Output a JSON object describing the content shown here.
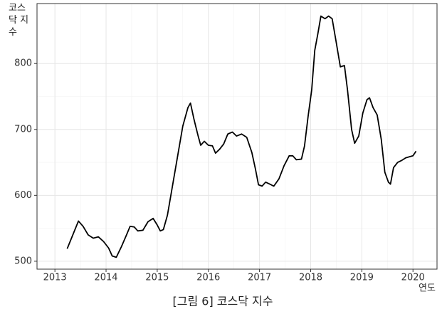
{
  "chart_data": {
    "type": "line",
    "caption": "[그림 6] 코스닥 지수",
    "ylabel": "코스닥 지수",
    "xlabel": "연도",
    "color": "#000000",
    "grid": true,
    "x": [
      2013.24,
      2013.35,
      2013.46,
      2013.55,
      2013.65,
      2013.75,
      2013.85,
      2013.95,
      2014.05,
      2014.12,
      2014.2,
      2014.3,
      2014.4,
      2014.47,
      2014.55,
      2014.62,
      2014.72,
      2014.82,
      2014.92,
      2015.0,
      2015.06,
      2015.12,
      2015.2,
      2015.3,
      2015.4,
      2015.5,
      2015.6,
      2015.65,
      2015.72,
      2015.8,
      2015.85,
      2015.92,
      2016.0,
      2016.08,
      2016.14,
      2016.22,
      2016.3,
      2016.38,
      2016.47,
      2016.55,
      2016.65,
      2016.75,
      2016.85,
      2016.92,
      2016.98,
      2017.05,
      2017.12,
      2017.2,
      2017.28,
      2017.38,
      2017.48,
      2017.58,
      2017.65,
      2017.72,
      2017.82,
      2017.88,
      2017.95,
      2018.02,
      2018.08,
      2018.14,
      2018.2,
      2018.28,
      2018.35,
      2018.42,
      2018.5,
      2018.58,
      2018.66,
      2018.72,
      2018.8,
      2018.86,
      2018.94,
      2019.02,
      2019.1,
      2019.15,
      2019.22,
      2019.3,
      2019.38,
      2019.45,
      2019.52,
      2019.56,
      2019.62,
      2019.7,
      2019.78,
      2019.86,
      2020.0,
      2020.06
    ],
    "values": [
      519,
      540,
      561,
      553,
      540,
      535,
      537,
      530,
      520,
      508,
      506,
      522,
      540,
      553,
      552,
      546,
      547,
      560,
      565,
      555,
      546,
      548,
      570,
      615,
      660,
      705,
      733,
      740,
      715,
      690,
      676,
      682,
      676,
      675,
      664,
      670,
      678,
      693,
      696,
      690,
      693,
      688,
      665,
      640,
      616,
      614,
      620,
      617,
      614,
      625,
      645,
      660,
      660,
      654,
      655,
      675,
      720,
      760,
      820,
      845,
      872,
      868,
      872,
      868,
      832,
      795,
      797,
      760,
      700,
      679,
      690,
      725,
      745,
      748,
      733,
      722,
      685,
      635,
      620,
      617,
      642,
      650,
      653,
      657,
      660,
      667
    ],
    "xlim": [
      2012.65,
      2020.47
    ],
    "xticks": [
      2013,
      2014,
      2015,
      2016,
      2017,
      2018,
      2019,
      2020
    ],
    "ylim": [
      488,
      891
    ],
    "yticks": [
      500,
      600,
      700,
      800
    ]
  }
}
